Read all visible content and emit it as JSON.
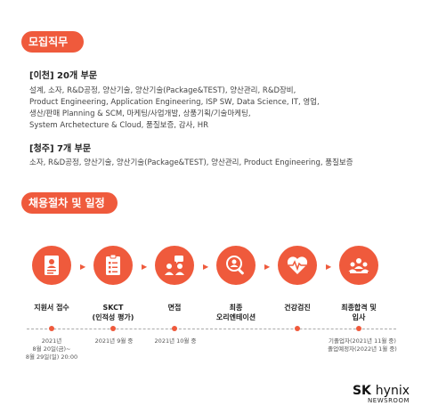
{
  "section1": {
    "title": "모집직무",
    "groups": [
      {
        "title": "[이천] 20개 부문",
        "lines": [
          "설계, 소자, R&D공정, 양산기술, 양산기술(Package&TEST), 양산관리, R&D장비,",
          "Product Engineering, Application Engineering, ISP SW, Data Science, IT, 영업,",
          "생산/판매 Planning & SCM, 마케팅/사업개발, 상품기획/기술마케팅,",
          "System Archetecture & Cloud, 품질보증, 감사, HR"
        ]
      },
      {
        "title": "[청주] 7개 부문",
        "lines": [
          "소자, R&D공정, 양산기술, 양산기술(Package&TEST), 양산관리, Product Engineering, 품질보증"
        ]
      }
    ]
  },
  "section2": {
    "title": "채용절차 및 일정",
    "steps": [
      {
        "label1": "지원서 접수",
        "label2": "",
        "icon": "application-form-icon"
      },
      {
        "label1": "SKCT",
        "label2": "(인적성 평가)",
        "icon": "checklist-icon"
      },
      {
        "label1": "면접",
        "label2": "",
        "icon": "interview-icon"
      },
      {
        "label1": "최종",
        "label2": "오리엔테이션",
        "icon": "search-person-icon"
      },
      {
        "label1": "건강검진",
        "label2": "",
        "icon": "heartbeat-icon"
      },
      {
        "label1": "최종합격 및",
        "label2": "입사",
        "icon": "group-people-icon"
      }
    ],
    "dates": {
      "d1_line1": "2021년",
      "d1_line2": "8월 20일(금)~",
      "d1_line3": "8월 29일(일) 20:00",
      "d2": "2021년 9월 중",
      "d3": "2021년 10월 중",
      "d4_line1": "기졸업자(2021년 11월 중)",
      "d4_line2": "졸업예정자(2022년 1월 중)"
    },
    "accent_color": "#ef5a3c"
  },
  "logo": {
    "main_bold": "SK",
    "main_thin": "hynix",
    "sub": "NEWSROOM"
  }
}
